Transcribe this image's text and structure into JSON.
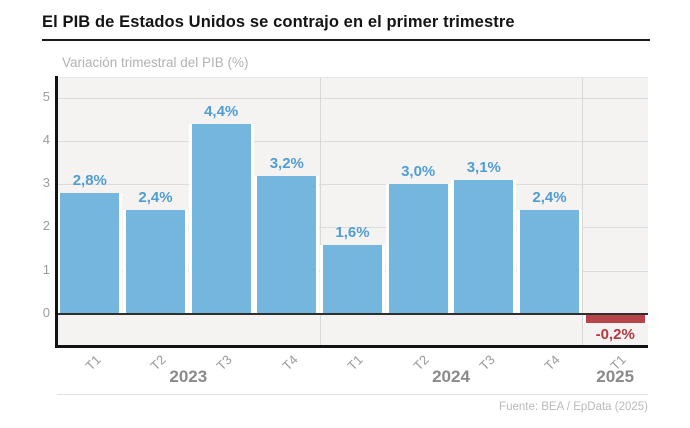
{
  "header": {
    "title": "El PIB de Estados Unidos se contrajo en el primer trimestre",
    "subtitle": "Variación trimestral del PIB (%)"
  },
  "footer": {
    "source": "Fuente: BEA / EpData (2025)"
  },
  "chart_data": {
    "type": "bar",
    "title": "El PIB de Estados Unidos se contrajo en el primer trimestre",
    "ylabel": "Variación trimestral del PIB (%)",
    "categories": [
      "T1",
      "T2",
      "T3",
      "T4",
      "T1",
      "T2",
      "T3",
      "T4",
      "T1"
    ],
    "year_groups": [
      {
        "label": "2023",
        "span": 4
      },
      {
        "label": "2024",
        "span": 4
      },
      {
        "label": "2025",
        "span": 1
      }
    ],
    "values": [
      2.8,
      2.4,
      4.4,
      3.2,
      1.6,
      3.0,
      3.1,
      2.4,
      -0.2
    ],
    "value_labels": [
      "2,8%",
      "2,4%",
      "4,4%",
      "3,2%",
      "1,6%",
      "3,0%",
      "3,1%",
      "2,4%",
      "-0,2%"
    ],
    "yticks": [
      0,
      1,
      2,
      3,
      4,
      5
    ],
    "ylim": [
      -0.76,
      5.45
    ],
    "grid": true,
    "legend": "none",
    "colors": {
      "bar_positive": "#74b6de",
      "bar_negative": "#b8434a",
      "label_positive": "#4f9ed3",
      "label_negative": "#b5383f"
    }
  }
}
